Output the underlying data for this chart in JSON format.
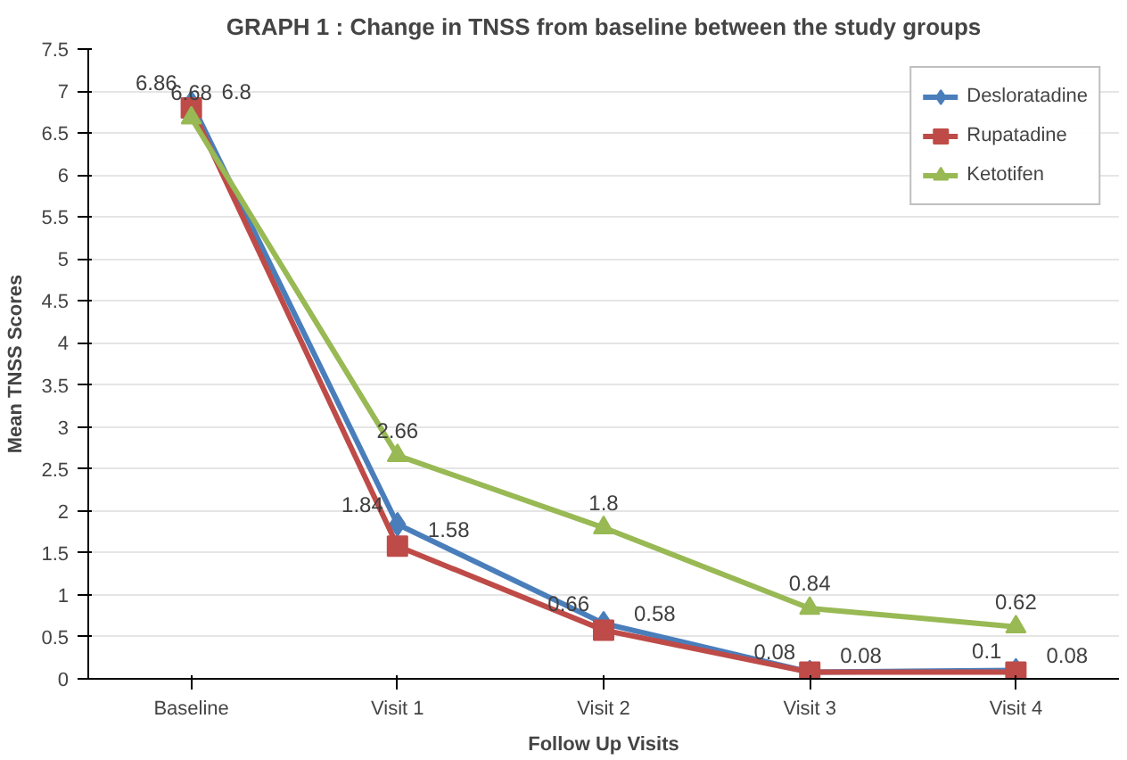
{
  "chart_data": {
    "type": "line",
    "title": "GRAPH 1 : Change in TNSS from baseline between the study groups",
    "xlabel": "Follow Up Visits",
    "ylabel": "Mean TNSS Scores",
    "categories": [
      "Baseline",
      "Visit 1",
      "Visit 2",
      "Visit 3",
      "Visit 4"
    ],
    "series": [
      {
        "name": "Desloratadine",
        "color": "#4a7ebb",
        "marker": "diamond",
        "values": [
          6.86,
          1.84,
          0.66,
          0.08,
          0.1
        ]
      },
      {
        "name": "Rupatadine",
        "color": "#be4b48",
        "marker": "square",
        "values": [
          6.8,
          1.58,
          0.58,
          0.08,
          0.08
        ]
      },
      {
        "name": "Ketotifen",
        "color": "#98b954",
        "marker": "triangle",
        "values": [
          6.68,
          2.66,
          1.8,
          0.84,
          0.62
        ]
      }
    ],
    "ylim": [
      0,
      7.5
    ],
    "yticks": [
      0,
      0.5,
      1,
      1.5,
      2,
      2.5,
      3,
      3.5,
      4,
      4.5,
      5,
      5.5,
      6,
      6.5,
      7,
      7.5
    ],
    "grid": "y",
    "legend": "top right",
    "data_labels": true
  }
}
